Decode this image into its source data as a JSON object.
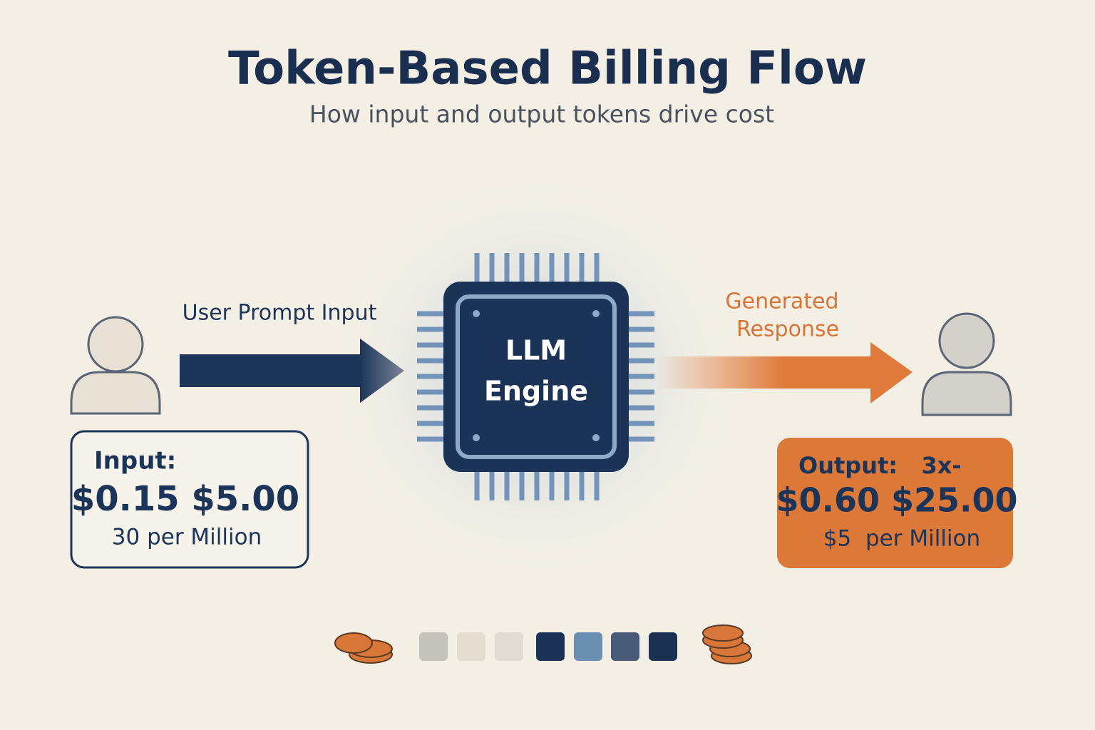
{
  "header": {
    "title": "Token-Based Billing Flow",
    "subtitle": "How input and output tokens drive cost"
  },
  "input_flow": {
    "label": "User Prompt Input"
  },
  "engine": {
    "lines": [
      "LLM",
      "Engine"
    ]
  },
  "output_flow": {
    "lines": [
      "Generated",
      "Response"
    ]
  },
  "input_box": {
    "lines": [
      "Input:",
      "$0.15 $5.00",
      "30 per Million"
    ]
  },
  "output_box": {
    "lines": [
      "Output:   3x-",
      "$0.60 $25.00",
      "$5  per Million"
    ]
  }
}
